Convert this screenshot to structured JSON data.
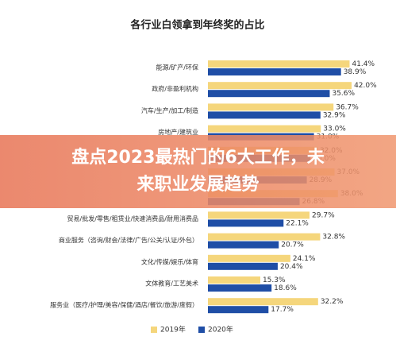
{
  "chart_data": {
    "type": "hbar",
    "title": "各行业白领拿到年终奖的占比",
    "categories": [
      "能源/矿产/环保",
      "政府/非盈利机构",
      "汽车/生产/加工/制造",
      "房地产/建筑业",
      null,
      null,
      null,
      "贸易/批发/零售/租赁业/快速消费品/耐用消费品",
      "商业服务（咨询/财会/法律/广告/公关/认证/外包）",
      "文化/传媒/娱乐/体育",
      "文体教育/工艺美术",
      "服务业（医疗/护理/美容/保健/酒店/餐饮/旅游/度假）"
    ],
    "series": [
      {
        "name": "2019年",
        "color": "#f5d67c",
        "values": [
          41.4,
          42.0,
          36.7,
          33.0,
          32.0,
          37.0,
          38.0,
          29.7,
          32.8,
          24.1,
          15.3,
          32.2
        ],
        "value_labels": [
          "41.4%",
          "42.0%",
          "36.7%",
          "33.0%",
          "32.0%",
          "37.0%",
          "38.0%",
          "29.7%",
          "32.8%",
          "24.1%",
          "15.3%",
          "32.2%"
        ]
      },
      {
        "name": "2020年",
        "color": "#1f4ea6",
        "values": [
          38.9,
          35.6,
          32.9,
          31.0,
          30.0,
          28.9,
          26.8,
          22.1,
          20.7,
          20.4,
          18.6,
          17.7
        ],
        "value_labels": [
          "38.9%",
          "35.6%",
          "32.9%",
          "31.0%",
          "30.0%",
          "28.9%",
          "26.8%",
          "22.1%",
          "20.7%",
          "20.4%",
          "18.6%",
          "17.7%"
        ]
      }
    ],
    "xlim": [
      0,
      45
    ],
    "banner": [
      "盘点2023最热门的6大工作，未",
      "来职业发展趋势"
    ]
  }
}
